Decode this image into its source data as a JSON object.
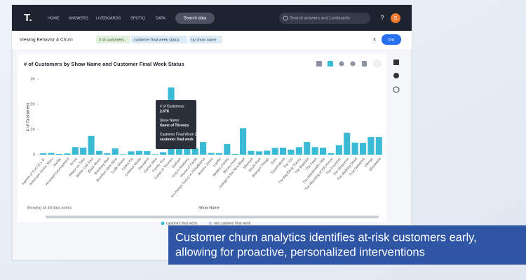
{
  "nav": {
    "logo": "T.",
    "items": [
      "HOME",
      "ANSWERS",
      "LIVEBOARDS",
      "SPOTIQ",
      "DATA"
    ],
    "search_data": "Search data",
    "search_answers": "Search answers and Liveboards",
    "help": "?",
    "avatar": "S"
  },
  "search": {
    "source": "Viewing Behavior & Churn",
    "tokens": [
      "# of customers",
      "customer final week status",
      "by show name"
    ],
    "clear": "×",
    "go": "Go"
  },
  "chart_data": {
    "type": "bar",
    "title": "# of Customers by Show Name and Customer Final Week Status",
    "y_label": "# of Customers",
    "categories": [
      "Agents of S.H.I.E.L.D.",
      "American Horror Story",
      "Archer",
      "Arrested Development",
      "Arrow",
      "Attack on Titan",
      "Better Call Saul",
      "Black Mirror",
      "Breaking Bad",
      "Brooklyn Nine-Nine",
      "Code Geass",
      "Cobra Kai",
      "Criminal Minds",
      "Daredevil",
      "Doctor Who",
      "Family Guy",
      "Game of Thrones",
      "Gotham",
      "Grey's Anatomy",
      "House of Cards",
      "It's Always Sunny in Philadelphia",
      "Jessica Jones",
      "Lucifer",
      "Modern Family",
      "Money Heist",
      "Orange Is the New Black",
      "Sherlock",
      "South Park",
      "Stranger Things",
      "Suits",
      "Supernatural",
      "The 100",
      "The Big Bang Theory",
      "The Blacklist",
      "The Flash",
      "The Handmaid's Tale",
      "The Haunting of Hill House",
      "The Punisher",
      "The Simpsons",
      "The Walking Dead",
      "True Detective",
      "Vikings",
      "Westworld"
    ],
    "series": [
      {
        "name": "customer final week",
        "color": "#3bbad6",
        "values": [
          60,
          70,
          30,
          50,
          300,
          280,
          750,
          150,
          60,
          250,
          20,
          130,
          150,
          140,
          20,
          100,
          2670,
          1450,
          1400,
          250,
          500,
          70,
          60,
          420,
          30,
          1050,
          150,
          130,
          160,
          270,
          280,
          200,
          300,
          500,
          300,
          280,
          60,
          380,
          870,
          480,
          470,
          700,
          700
        ]
      }
    ],
    "inactive_legend": [
      {
        "name": "not customer final week",
        "color": "#c5d0e0"
      }
    ],
    "ylim": [
      0,
      3000
    ],
    "yticks": [
      {
        "value": 0,
        "label": "0"
      },
      {
        "value": 1000,
        "label": "1K"
      },
      {
        "value": 2000,
        "label": "2K"
      },
      {
        "value": 3000,
        "label": "3K"
      }
    ],
    "tooltip": {
      "lines": [
        "# of Customers:",
        "2.67K",
        "Show Name:",
        "Game of Thrones",
        "Customer Final Week Status:",
        "customer final week"
      ]
    },
    "footer": "Showing all 48 data points",
    "x_label": "Show Name"
  },
  "caption": [
    "Customer churn analytics identifies at-risk customers early,",
    "allowing for proactive, personalized interventions"
  ]
}
